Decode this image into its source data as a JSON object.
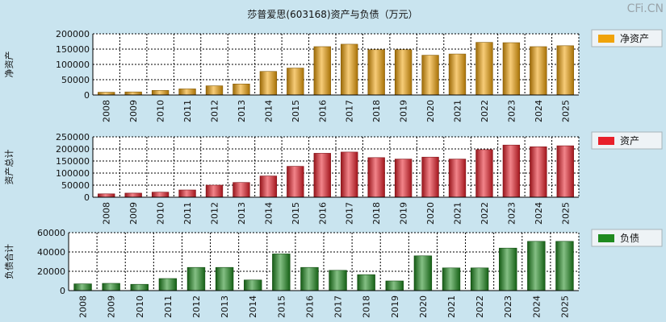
{
  "title": "莎普爱思(603168)资产与负债（万元）",
  "watermark": "CFi.CN",
  "chart_data": [
    {
      "type": "bar",
      "ylabel": "净资产",
      "legend": "净资产",
      "color": "#f0a30a",
      "ylim": [
        0,
        200000
      ],
      "yticks": [
        0,
        50000,
        100000,
        150000,
        200000
      ],
      "categories": [
        "2008",
        "2009",
        "2010",
        "2011",
        "2012",
        "2013",
        "2014",
        "2015",
        "2016",
        "2017",
        "2018",
        "2019",
        "2020",
        "2021",
        "2022",
        "2023",
        "2024",
        "2025"
      ],
      "values": [
        9000,
        10000,
        15000,
        20000,
        30000,
        36000,
        77000,
        88000,
        158000,
        166000,
        148000,
        148000,
        130000,
        134000,
        172000,
        171000,
        158000,
        161000
      ],
      "grid": true,
      "legend_position": "right"
    },
    {
      "type": "bar",
      "ylabel": "资产总计",
      "legend": "资产",
      "color": "#e8202a",
      "ylim": [
        0,
        250000
      ],
      "yticks": [
        0,
        50000,
        100000,
        150000,
        200000,
        250000
      ],
      "categories": [
        "2008",
        "2009",
        "2010",
        "2011",
        "2012",
        "2013",
        "2014",
        "2015",
        "2016",
        "2017",
        "2018",
        "2019",
        "2020",
        "2021",
        "2022",
        "2023",
        "2024",
        "2025"
      ],
      "values": [
        14000,
        17000,
        21000,
        30000,
        50000,
        61000,
        88000,
        128000,
        182000,
        187000,
        164000,
        158000,
        166000,
        158000,
        197000,
        216000,
        209000,
        213000
      ],
      "grid": true,
      "legend_position": "right"
    },
    {
      "type": "bar",
      "ylabel": "负债合计",
      "legend": "负债",
      "color": "#1f8a1f",
      "ylim": [
        0,
        60000
      ],
      "yticks": [
        0,
        20000,
        40000,
        60000
      ],
      "categories": [
        "2008",
        "2009",
        "2010",
        "2011",
        "2012",
        "2013",
        "2014",
        "2015",
        "2016",
        "2017",
        "2018",
        "2019",
        "2020",
        "2021",
        "2022",
        "2023",
        "2024",
        "2025"
      ],
      "values": [
        7000,
        7500,
        6500,
        12500,
        24000,
        24000,
        11000,
        38000,
        24000,
        21000,
        16500,
        10000,
        36000,
        23500,
        23500,
        44000,
        51000,
        51000
      ],
      "grid": true,
      "legend_position": "right"
    }
  ]
}
